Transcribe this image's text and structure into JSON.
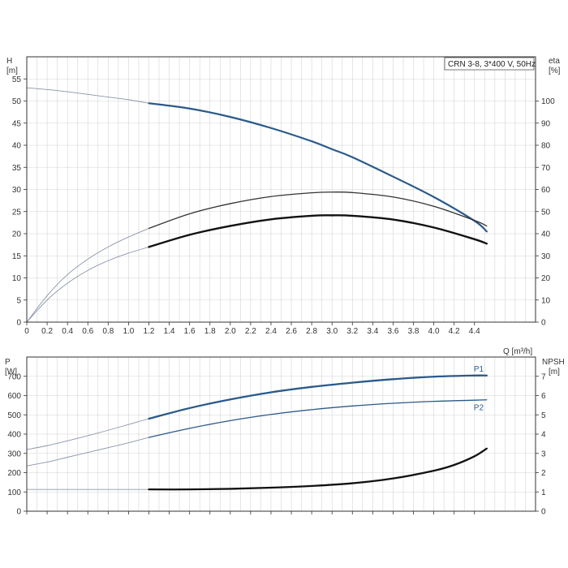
{
  "chart_data": {
    "type": "line",
    "legend": "CRN 3-8, 3*400 V, 50Hz",
    "colors": {
      "head": "#2a5a8a",
      "eta": "#333333",
      "eta_pump": "#111111",
      "p1": "#2a5a8a",
      "p2": "#2a5a8a",
      "npsh": "#111111",
      "extrapolated": "#8a96a8",
      "grid": "#d4d4d4",
      "frame": "#333333"
    },
    "x_axis": {
      "label": "Q [m³/h]",
      "range": [
        0,
        5
      ],
      "ticks": [
        "0",
        "0.2",
        "0.4",
        "0.6",
        "0.8",
        "1.0",
        "1.2",
        "1.4",
        "1.6",
        "1.8",
        "2.0",
        "2.2",
        "2.4",
        "2.6",
        "2.8",
        "3.0",
        "3.2",
        "3.4",
        "3.6",
        "3.8",
        "4.0",
        "4.2",
        "4.4"
      ]
    },
    "top_panel": {
      "left_axis": {
        "label_line1": "H",
        "label_line2": "[m]",
        "range": [
          0,
          60
        ],
        "ticks": [
          "0",
          "5",
          "10",
          "15",
          "20",
          "25",
          "30",
          "35",
          "40",
          "45",
          "50",
          "55"
        ]
      },
      "right_axis": {
        "label_line1": "eta",
        "label_line2": "[%]",
        "range": [
          0,
          120
        ],
        "ticks": [
          "0",
          "10",
          "20",
          "30",
          "40",
          "50",
          "60",
          "70",
          "80",
          "90",
          "100"
        ]
      },
      "series": [
        {
          "key": "head",
          "axis": "left",
          "extrapolated_x": [
            0,
            0.2,
            0.4,
            0.6,
            0.8,
            1.0,
            1.2
          ],
          "extrapolated_y": [
            53.0,
            52.6,
            52.1,
            51.5,
            50.9,
            50.3,
            49.5
          ],
          "x": [
            1.2,
            1.6,
            2.0,
            2.4,
            2.8,
            3.0,
            3.2,
            3.6,
            4.0,
            4.4,
            4.52
          ],
          "y": [
            49.5,
            48.3,
            46.4,
            43.9,
            40.9,
            39.1,
            37.3,
            32.9,
            28.3,
            22.9,
            20.5
          ]
        },
        {
          "key": "eta",
          "axis": "right",
          "extrapolated_x": [
            0,
            0.2,
            0.4,
            0.6,
            0.8,
            1.0,
            1.2
          ],
          "extrapolated_y": [
            0,
            12,
            21.5,
            28.5,
            34,
            38.5,
            42.4
          ],
          "x": [
            1.2,
            1.6,
            2.0,
            2.4,
            2.8,
            3.0,
            3.2,
            3.6,
            4.0,
            4.4,
            4.52
          ],
          "y": [
            42.4,
            49,
            53.6,
            56.8,
            58.5,
            58.8,
            58.6,
            56.6,
            52.4,
            46,
            43.5
          ]
        },
        {
          "key": "eta_pump",
          "axis": "right",
          "extrapolated_x": [
            0,
            0.2,
            0.4,
            0.6,
            0.8,
            1.0,
            1.2
          ],
          "extrapolated_y": [
            0,
            10,
            17.6,
            23.4,
            27.8,
            31.2,
            34.0
          ],
          "x": [
            1.2,
            1.6,
            2.0,
            2.4,
            2.8,
            3.0,
            3.2,
            3.6,
            4.0,
            4.4,
            4.52
          ],
          "y": [
            34.0,
            39.5,
            43.5,
            46.5,
            48.1,
            48.3,
            48.1,
            46.4,
            42.8,
            37.5,
            35.5
          ]
        }
      ]
    },
    "bottom_panel": {
      "left_axis": {
        "label_line1": "P",
        "label_line2": "[W]",
        "range": [
          0,
          800
        ],
        "ticks": [
          "0",
          "100",
          "200",
          "300",
          "400",
          "500",
          "600",
          "700"
        ]
      },
      "right_axis": {
        "label_line1": "NPSH",
        "label_line2": "[m]",
        "range": [
          0,
          8
        ],
        "ticks": [
          "0",
          "1",
          "2",
          "3",
          "4",
          "5",
          "6",
          "7"
        ]
      },
      "series": [
        {
          "key": "p1",
          "name": "P1",
          "axis": "left",
          "extrapolated_x": [
            0,
            0.2,
            0.4,
            0.6,
            0.8,
            1.0,
            1.2
          ],
          "extrapolated_y": [
            320,
            340,
            365,
            392,
            420,
            450,
            480
          ],
          "x": [
            1.2,
            1.6,
            2.0,
            2.4,
            2.8,
            3.2,
            3.6,
            4.0,
            4.4,
            4.52
          ],
          "y": [
            480,
            535,
            580,
            617,
            645,
            667,
            685,
            698,
            704,
            704
          ]
        },
        {
          "key": "p2",
          "name": "P2",
          "axis": "left",
          "extrapolated_x": [
            0,
            0.2,
            0.4,
            0.6,
            0.8,
            1.0,
            1.2
          ],
          "extrapolated_y": [
            235,
            255,
            280,
            305,
            330,
            355,
            383
          ],
          "x": [
            1.2,
            1.6,
            2.0,
            2.4,
            2.8,
            3.2,
            3.6,
            4.0,
            4.4,
            4.52
          ],
          "y": [
            383,
            430,
            470,
            502,
            527,
            546,
            560,
            570,
            576,
            578
          ]
        },
        {
          "key": "npsh",
          "axis": "right",
          "extrapolated_x": [
            0,
            0.6,
            1.2
          ],
          "extrapolated_y": [
            1.13,
            1.13,
            1.13
          ],
          "x": [
            1.2,
            1.6,
            2.0,
            2.4,
            2.8,
            3.2,
            3.6,
            4.0,
            4.2,
            4.4,
            4.52
          ],
          "y": [
            1.13,
            1.13,
            1.16,
            1.22,
            1.31,
            1.45,
            1.7,
            2.1,
            2.4,
            2.85,
            3.25
          ]
        }
      ]
    }
  }
}
